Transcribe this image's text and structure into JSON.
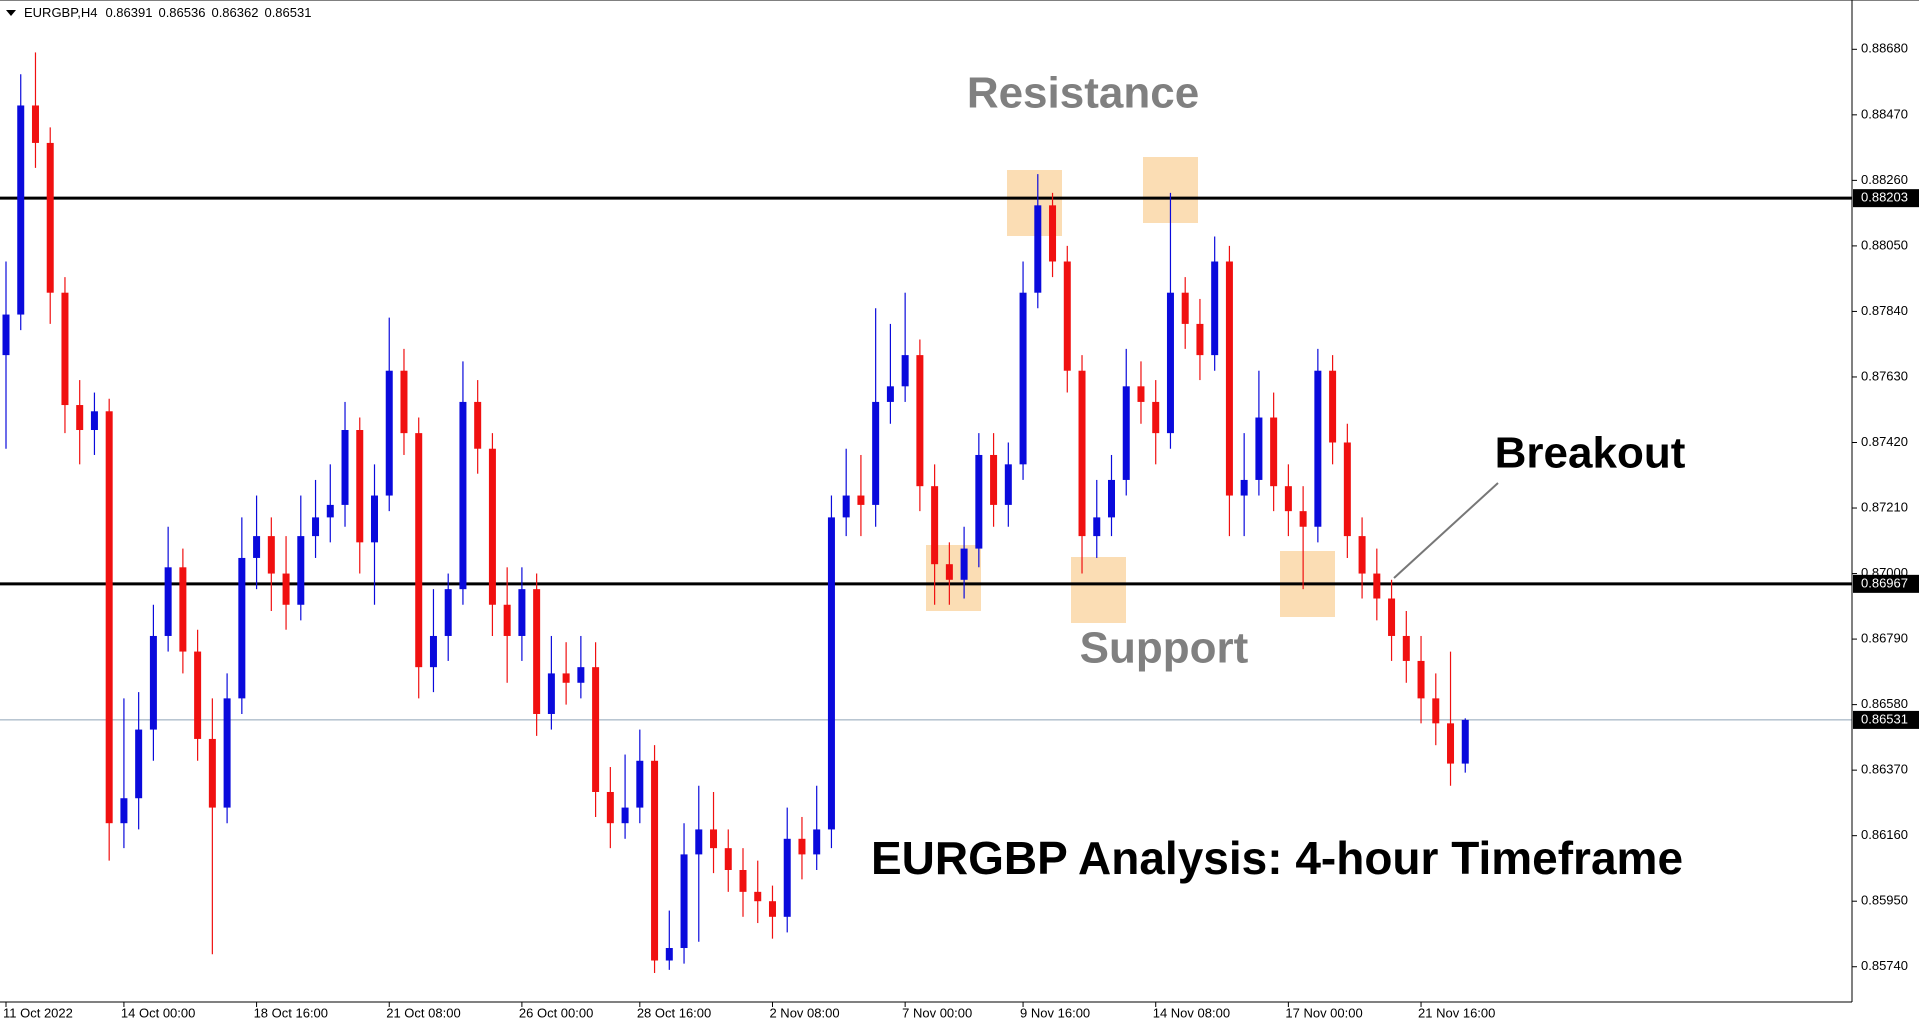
{
  "chart_data": {
    "type": "candlestick",
    "symbol": "EURGBP,H4",
    "annotations": {
      "resistance": "Resistance",
      "support": "Support",
      "breakout": "Breakout",
      "caption": "EURGBP Analysis: 4-hour Timeframe"
    },
    "categories": [
      "11 Oct 2022",
      null,
      null,
      null,
      null,
      null,
      null,
      null,
      "14 Oct 00:00",
      null,
      null,
      null,
      null,
      null,
      null,
      null,
      null,
      "18 Oct 16:00",
      null,
      null,
      null,
      null,
      null,
      null,
      null,
      null,
      "21 Oct 08:00",
      null,
      null,
      null,
      null,
      null,
      null,
      null,
      null,
      "26 Oct 00:00",
      null,
      null,
      null,
      null,
      null,
      null,
      null,
      "28 Oct 16:00",
      null,
      null,
      null,
      null,
      null,
      null,
      null,
      null,
      "2 Nov 08:00",
      null,
      null,
      null,
      null,
      null,
      null,
      null,
      null,
      "7 Nov 00:00",
      null,
      null,
      null,
      null,
      null,
      null,
      null,
      "9 Nov 16:00",
      null,
      null,
      null,
      null,
      null,
      null,
      null,
      null,
      "14 Nov 08:00",
      null,
      null,
      null,
      null,
      null,
      null,
      null,
      null,
      "17 Nov 00:00",
      null,
      null,
      null,
      null,
      null,
      null,
      null,
      null,
      "21 Nov 16:00",
      null,
      null,
      null
    ],
    "open": [
      0.877,
      0.8783,
      0.885,
      0.8838,
      0.879,
      0.8754,
      0.8746,
      0.8752,
      0.862,
      0.8628,
      0.865,
      0.868,
      0.8702,
      0.8675,
      0.8647,
      0.8625,
      0.866,
      0.8705,
      0.8712,
      0.87,
      0.869,
      0.8712,
      0.8718,
      0.8722,
      0.8746,
      0.871,
      0.8725,
      0.8765,
      0.8745,
      0.867,
      0.868,
      0.8695,
      0.8755,
      0.874,
      0.869,
      0.868,
      0.8695,
      0.8655,
      0.8668,
      0.8665,
      0.867,
      0.863,
      0.862,
      0.8625,
      0.864,
      0.8576,
      0.858,
      0.861,
      0.8618,
      0.8612,
      0.8605,
      0.8598,
      0.8595,
      0.859,
      0.8615,
      0.861,
      0.8618,
      0.8718,
      0.8725,
      0.8722,
      0.8755,
      0.876,
      0.877,
      0.8728,
      0.8703,
      0.8698,
      0.8708,
      0.8738,
      0.8722,
      0.8735,
      0.879,
      0.8818,
      0.88,
      0.8765,
      0.8712,
      0.8718,
      0.873,
      0.876,
      0.8755,
      0.8745,
      0.879,
      0.878,
      0.877,
      0.88,
      0.8725,
      0.873,
      0.875,
      0.8728,
      0.872,
      0.8715,
      0.8765,
      0.8742,
      0.8712,
      0.87,
      0.8692,
      0.868,
      0.8672,
      0.866,
      0.8652,
      0.86391
    ],
    "high": [
      0.88,
      0.886,
      0.8867,
      0.8843,
      0.8795,
      0.8762,
      0.8758,
      0.8756,
      0.866,
      0.8662,
      0.869,
      0.8715,
      0.8708,
      0.8682,
      0.866,
      0.8668,
      0.8718,
      0.8725,
      0.8718,
      0.8712,
      0.8725,
      0.873,
      0.8735,
      0.8755,
      0.875,
      0.8735,
      0.8782,
      0.8772,
      0.875,
      0.8695,
      0.87,
      0.8768,
      0.8762,
      0.8745,
      0.8702,
      0.8702,
      0.87,
      0.868,
      0.8678,
      0.868,
      0.8678,
      0.8638,
      0.8642,
      0.865,
      0.8645,
      0.8592,
      0.862,
      0.8632,
      0.863,
      0.8618,
      0.8612,
      0.8608,
      0.86,
      0.8625,
      0.8622,
      0.8632,
      0.8725,
      0.874,
      0.8738,
      0.8785,
      0.878,
      0.879,
      0.8775,
      0.8735,
      0.871,
      0.8715,
      0.8745,
      0.8745,
      0.8742,
      0.88,
      0.8828,
      0.8822,
      0.8805,
      0.877,
      0.873,
      0.8738,
      0.8772,
      0.8768,
      0.8762,
      0.8822,
      0.8795,
      0.8788,
      0.8808,
      0.8805,
      0.8745,
      0.8765,
      0.8758,
      0.8735,
      0.8728,
      0.8772,
      0.877,
      0.8748,
      0.8718,
      0.8708,
      0.8698,
      0.8688,
      0.868,
      0.8668,
      0.8675,
      0.86536
    ],
    "low": [
      0.874,
      0.8778,
      0.883,
      0.878,
      0.8745,
      0.8735,
      0.8738,
      0.8608,
      0.8612,
      0.8618,
      0.864,
      0.8675,
      0.8668,
      0.864,
      0.8578,
      0.862,
      0.8655,
      0.8695,
      0.8688,
      0.8682,
      0.8685,
      0.8705,
      0.871,
      0.8715,
      0.87,
      0.869,
      0.872,
      0.8738,
      0.866,
      0.8662,
      0.8672,
      0.869,
      0.8732,
      0.868,
      0.8665,
      0.8672,
      0.8648,
      0.865,
      0.8658,
      0.866,
      0.8622,
      0.8612,
      0.8615,
      0.862,
      0.8572,
      0.8573,
      0.8575,
      0.8582,
      0.8604,
      0.8598,
      0.859,
      0.8588,
      0.8583,
      0.8585,
      0.8602,
      0.8605,
      0.8612,
      0.8712,
      0.8712,
      0.8715,
      0.8748,
      0.8755,
      0.872,
      0.869,
      0.869,
      0.8692,
      0.8702,
      0.8715,
      0.8715,
      0.873,
      0.8785,
      0.8795,
      0.8758,
      0.87,
      0.8705,
      0.8712,
      0.8725,
      0.8748,
      0.8735,
      0.874,
      0.8772,
      0.8762,
      0.8765,
      0.8712,
      0.8712,
      0.8725,
      0.872,
      0.8712,
      0.8695,
      0.871,
      0.8735,
      0.8705,
      0.8692,
      0.8685,
      0.8672,
      0.8665,
      0.8652,
      0.8645,
      0.8632,
      0.86362
    ],
    "close": [
      0.8783,
      0.885,
      0.8838,
      0.879,
      0.8754,
      0.8746,
      0.8752,
      0.862,
      0.8628,
      0.865,
      0.868,
      0.8702,
      0.8675,
      0.8647,
      0.8625,
      0.866,
      0.8705,
      0.8712,
      0.87,
      0.869,
      0.8712,
      0.8718,
      0.8722,
      0.8746,
      0.871,
      0.8725,
      0.8765,
      0.8745,
      0.867,
      0.868,
      0.8695,
      0.8755,
      0.874,
      0.869,
      0.868,
      0.8695,
      0.8655,
      0.8668,
      0.8665,
      0.867,
      0.863,
      0.862,
      0.8625,
      0.864,
      0.8576,
      0.858,
      0.861,
      0.8618,
      0.8612,
      0.8605,
      0.8598,
      0.8595,
      0.859,
      0.8615,
      0.861,
      0.8618,
      0.8718,
      0.8725,
      0.8722,
      0.8755,
      0.876,
      0.877,
      0.8728,
      0.8703,
      0.8698,
      0.8708,
      0.8738,
      0.8722,
      0.8735,
      0.879,
      0.8818,
      0.88,
      0.8765,
      0.8712,
      0.8718,
      0.873,
      0.876,
      0.8755,
      0.8745,
      0.879,
      0.878,
      0.877,
      0.88,
      0.8725,
      0.873,
      0.875,
      0.8728,
      0.872,
      0.8715,
      0.8765,
      0.8742,
      0.8712,
      0.87,
      0.8692,
      0.868,
      0.8672,
      0.866,
      0.8652,
      0.86391,
      0.86531
    ],
    "up_color": "#0a0adc",
    "down_color": "#f01010",
    "ylim": [
      0.85627,
      0.88838
    ],
    "yticks": [
      {
        "value": 0.8868,
        "label": "0.88680"
      },
      {
        "value": 0.8847,
        "label": "0.88470"
      },
      {
        "value": 0.8826,
        "label": "0.88260"
      },
      {
        "value": 0.8805,
        "label": "0.88050"
      },
      {
        "value": 0.8784,
        "label": "0.87840"
      },
      {
        "value": 0.8763,
        "label": "0.87630"
      },
      {
        "value": 0.8742,
        "label": "0.87420"
      },
      {
        "value": 0.8721,
        "label": "0.87210"
      },
      {
        "value": 0.87,
        "label": "0.87000"
      },
      {
        "value": 0.8679,
        "label": "0.86790"
      },
      {
        "value": 0.8658,
        "label": "0.86580"
      },
      {
        "value": 0.8637,
        "label": "0.86370"
      },
      {
        "value": 0.8616,
        "label": "0.86160"
      },
      {
        "value": 0.8595,
        "label": "0.85950"
      },
      {
        "value": 0.8574,
        "label": "0.85740"
      }
    ],
    "price_lines": [
      {
        "value": 0.88203,
        "color": "#000000",
        "width": 3
      },
      {
        "value": 0.86967,
        "color": "#000000",
        "width": 3
      },
      {
        "value": 0.86531,
        "color": "#8fa4b8",
        "width": 1
      }
    ]
  }
}
